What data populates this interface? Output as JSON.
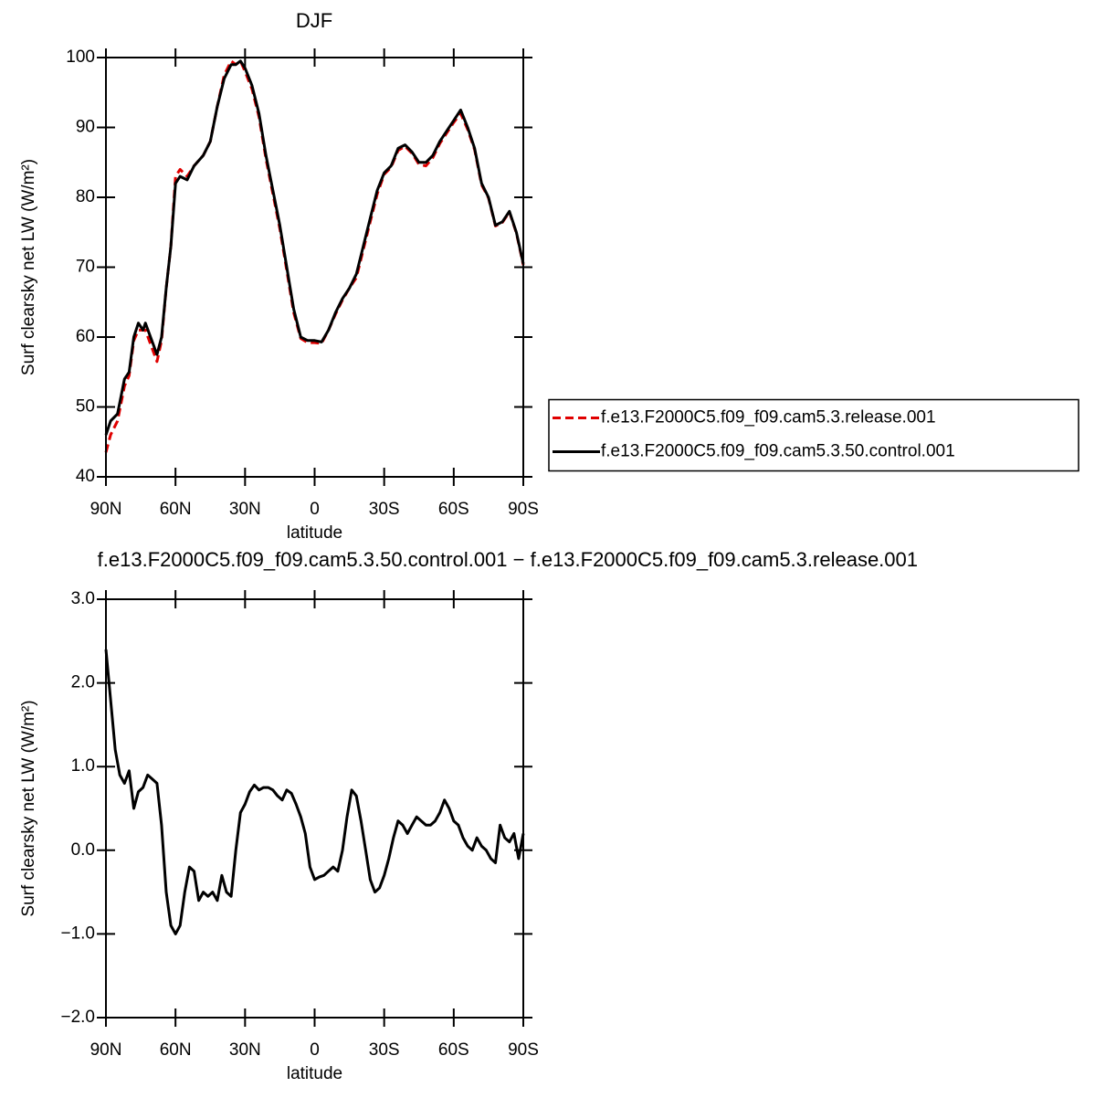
{
  "chart_data": [
    {
      "type": "line",
      "title": "DJF",
      "xlabel": "latitude",
      "ylabel": "Surf clearsky net LW (W/m²)",
      "xlim": [
        90,
        -90
      ],
      "ylim": [
        40,
        100
      ],
      "xticks": [
        {
          "value": 90,
          "label": "90N"
        },
        {
          "value": 60,
          "label": "60N"
        },
        {
          "value": 30,
          "label": "30N"
        },
        0,
        {
          "value": -30,
          "label": "30S"
        },
        {
          "value": -60,
          "label": "60S"
        },
        {
          "value": -90,
          "label": "90S"
        }
      ],
      "yticks": [
        40,
        50,
        60,
        70,
        80,
        90,
        100
      ],
      "legend_position": "right",
      "x": [
        90,
        88,
        85,
        82,
        80,
        78,
        76,
        74,
        73,
        68,
        66,
        64,
        62,
        60,
        58,
        55,
        52,
        48,
        45,
        42,
        39,
        36,
        34,
        32,
        30,
        27,
        24,
        21,
        18,
        15,
        12,
        9,
        6,
        3,
        0,
        -3,
        -6,
        -9,
        -12,
        -15,
        -18,
        -21,
        -24,
        -27,
        -30,
        -33,
        -36,
        -39,
        -42,
        -45,
        -48,
        -51,
        -54,
        -57,
        -60,
        -63,
        -66,
        -69,
        -72,
        -75,
        -78,
        -81,
        -84,
        -87,
        -90
      ],
      "series": [
        {
          "name": "f.e13.F2000C5.f09_f09.cam5.3.release.001",
          "color": "#e00000",
          "dashed": true,
          "values": [
            43.5,
            46,
            48,
            53,
            54.5,
            59.5,
            61,
            61,
            61,
            56.5,
            59.5,
            67,
            73,
            83,
            84,
            83,
            84.5,
            86,
            88,
            93,
            97.5,
            99.5,
            99,
            99.5,
            98,
            95.5,
            91.5,
            85.5,
            80.5,
            75.5,
            69.5,
            63.5,
            59.8,
            59.2,
            59.2,
            59.1,
            61,
            63.3,
            65.3,
            67,
            68.5,
            72.5,
            76.5,
            80.5,
            83.3,
            84.3,
            86.7,
            87.3,
            86.3,
            84.7,
            84.5,
            85.7,
            87.7,
            89.2,
            90.7,
            92,
            89.7,
            86.8,
            81.8,
            79.9,
            75.9,
            76.4,
            77.9,
            74.9,
            70.3
          ]
        },
        {
          "name": "f.e13.F2000C5.f09_f09.cam5.3.50.control.001",
          "color": "#000000",
          "dashed": false,
          "values": [
            46,
            48,
            49,
            54,
            55,
            60,
            62,
            61,
            62,
            57.5,
            60,
            67,
            73,
            82,
            83,
            82.5,
            84.5,
            86,
            88,
            93,
            97,
            99,
            99,
            99.5,
            98.5,
            96,
            92,
            86,
            81,
            76,
            70,
            64,
            60,
            59.5,
            59.5,
            59.3,
            61,
            63.5,
            65.5,
            67,
            69,
            73,
            77,
            81,
            83.5,
            84.5,
            87,
            87.5,
            86.5,
            85,
            85,
            86,
            88,
            89.5,
            91,
            92.5,
            90,
            87,
            82,
            80,
            76,
            76.5,
            78,
            75,
            70.5
          ]
        }
      ]
    },
    {
      "type": "line",
      "title": "f.e13.F2000C5.f09_f09.cam5.3.50.control.001 − f.e13.F2000C5.f09_f09.cam5.3.release.001",
      "xlabel": "latitude",
      "ylabel": "Surf clearsky net LW (W/m²)",
      "xlim": [
        90,
        -90
      ],
      "ylim": [
        -2,
        3
      ],
      "xticks": [
        {
          "value": 90,
          "label": "90N"
        },
        {
          "value": 60,
          "label": "60N"
        },
        {
          "value": 30,
          "label": "30N"
        },
        0,
        {
          "value": -30,
          "label": "30S"
        },
        {
          "value": -60,
          "label": "60S"
        },
        {
          "value": -90,
          "label": "90S"
        }
      ],
      "yticks": [
        {
          "value": -2,
          "label": "−2.0"
        },
        {
          "value": -1,
          "label": "−1.0"
        },
        {
          "value": 0,
          "label": "0.0"
        },
        {
          "value": 1,
          "label": "1.0"
        },
        {
          "value": 2,
          "label": "2.0"
        },
        {
          "value": 3,
          "label": "3.0"
        }
      ],
      "color": "#000000",
      "x": [
        90,
        88,
        86,
        84,
        82,
        80,
        78,
        76,
        74,
        72,
        70,
        68,
        66,
        64,
        62,
        60,
        58,
        56,
        54,
        52,
        50,
        48,
        46,
        44,
        42,
        40,
        38,
        36,
        34,
        32,
        30,
        28,
        26,
        24,
        22,
        20,
        18,
        16,
        14,
        12,
        10,
        8,
        6,
        4,
        2,
        0,
        -2,
        -4,
        -6,
        -8,
        -10,
        -12,
        -14,
        -16,
        -18,
        -20,
        -22,
        -24,
        -26,
        -28,
        -30,
        -32,
        -34,
        -36,
        -38,
        -40,
        -42,
        -44,
        -46,
        -48,
        -50,
        -52,
        -54,
        -56,
        -58,
        -60,
        -62,
        -64,
        -66,
        -68,
        -70,
        -72,
        -74,
        -76,
        -78,
        -80,
        -82,
        -84,
        -86,
        -88,
        -90
      ],
      "values": [
        2.4,
        1.8,
        1.2,
        0.9,
        0.8,
        0.95,
        0.5,
        0.7,
        0.75,
        0.9,
        0.85,
        0.8,
        0.3,
        -0.5,
        -0.9,
        -1.0,
        -0.9,
        -0.5,
        -0.2,
        -0.25,
        -0.6,
        -0.5,
        -0.55,
        -0.5,
        -0.6,
        -0.3,
        -0.5,
        -0.55,
        0.0,
        0.45,
        0.55,
        0.7,
        0.78,
        0.72,
        0.75,
        0.75,
        0.72,
        0.65,
        0.6,
        0.72,
        0.68,
        0.55,
        0.4,
        0.2,
        -0.2,
        -0.35,
        -0.32,
        -0.3,
        -0.25,
        -0.2,
        -0.25,
        0.0,
        0.4,
        0.72,
        0.65,
        0.35,
        0.0,
        -0.35,
        -0.5,
        -0.45,
        -0.3,
        -0.1,
        0.15,
        0.35,
        0.3,
        0.2,
        0.3,
        0.4,
        0.35,
        0.3,
        0.3,
        0.35,
        0.45,
        0.6,
        0.5,
        0.35,
        0.3,
        0.15,
        0.05,
        0.0,
        0.15,
        0.05,
        0.0,
        -0.1,
        -0.15,
        0.3,
        0.15,
        0.1,
        0.2,
        -0.1,
        0.2
      ]
    }
  ]
}
